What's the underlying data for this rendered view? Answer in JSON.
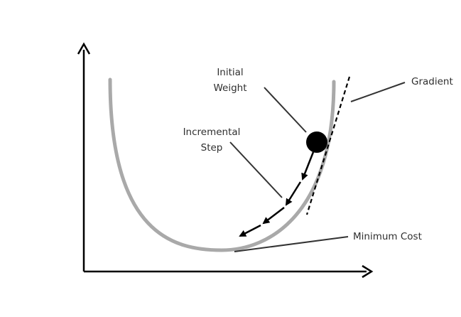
{
  "labels": {
    "initial_weight_line1": "Initial",
    "initial_weight_line2": "Weight",
    "incremental_step_line1": "Incremental",
    "incremental_step_line2": "Step",
    "gradient": "Gradient",
    "minimum_cost": "Minimum Cost"
  },
  "colors": {
    "curve": "#a9a9a9",
    "ink": "#000000",
    "text": "#2f2f2f"
  }
}
